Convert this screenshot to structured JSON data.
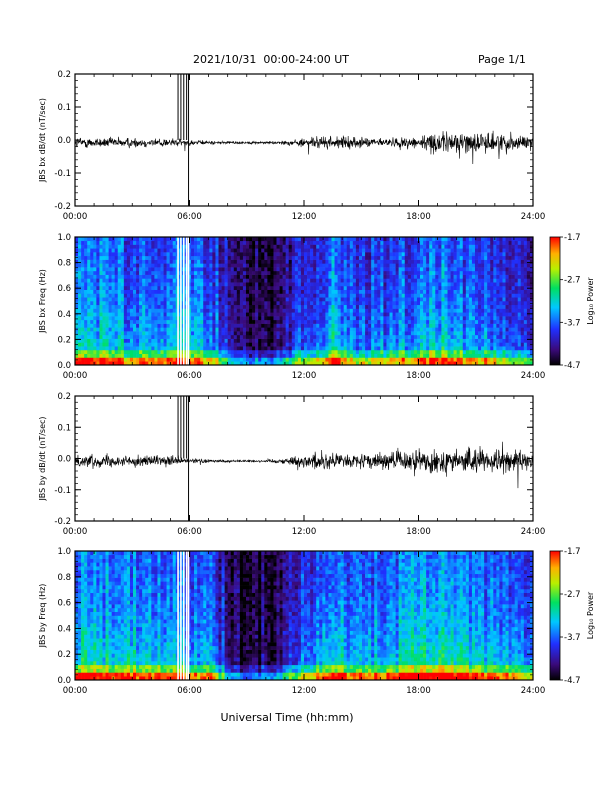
{
  "header": {
    "date_range": "2021/10/31  00:00-24:00 UT",
    "page": "Page 1/1"
  },
  "footer": {
    "xlabel": "Universal Time (hh:mm)"
  },
  "chart_data": [
    {
      "type": "line",
      "ylabel": "JBS bx dB/dt (nT/sec)",
      "xlabel": "",
      "x_range_hours": [
        0,
        24
      ],
      "x_ticks": [
        "00:00",
        "06:00",
        "12:00",
        "18:00",
        "24:00"
      ],
      "ylim": [
        -0.2,
        0.2
      ],
      "y_ticks": [
        "0.2",
        "0.1",
        "0.0",
        "-0.1",
        "-0.2"
      ],
      "y_tick_values": [
        0.2,
        0.1,
        0.0,
        -0.1,
        -0.2
      ],
      "series": [
        {
          "color": "#000000",
          "x_hours": [
            0,
            1,
            2,
            3,
            4,
            5,
            6,
            7,
            8,
            9,
            10,
            11,
            12,
            13,
            14,
            15,
            16,
            17,
            18,
            19,
            20,
            21,
            22,
            23,
            24
          ],
          "envelope_amplitude": [
            0.04,
            0.035,
            0.035,
            0.035,
            0.03,
            0.03,
            0.02,
            0.012,
            0.01,
            0.008,
            0.01,
            0.015,
            0.03,
            0.045,
            0.04,
            0.035,
            0.03,
            0.035,
            0.05,
            0.07,
            0.08,
            0.07,
            0.07,
            0.06,
            0.05
          ]
        }
      ],
      "spikes_hours": [
        5.4,
        5.55,
        5.7,
        5.85,
        5.95
      ]
    },
    {
      "type": "heatmap",
      "ylabel": "JBS bx Freq (Hz)",
      "xlabel": "",
      "x_range_hours": [
        0,
        24
      ],
      "x_ticks": [
        "00:00",
        "06:00",
        "12:00",
        "18:00",
        "24:00"
      ],
      "ylim": [
        0.0,
        1.0
      ],
      "y_ticks": [
        "1.0",
        "0.8",
        "0.6",
        "0.4",
        "0.2",
        "0.0"
      ],
      "y_tick_values": [
        1.0,
        0.8,
        0.6,
        0.4,
        0.2,
        0.0
      ],
      "colorbar": {
        "label": "Log₁₀ Power",
        "range": [
          -4.7,
          -1.7
        ],
        "ticks": [
          "-1.7",
          "-2.7",
          "-3.7",
          "-4.7"
        ],
        "tick_values": [
          -1.7,
          -2.7,
          -3.7,
          -4.7
        ]
      },
      "activity_by_hour": [
        0.55,
        0.55,
        0.5,
        0.5,
        0.5,
        0.55,
        0.5,
        0.45,
        0.1,
        0.1,
        0.12,
        0.3,
        0.35,
        0.6,
        0.35,
        0.4,
        0.45,
        0.5,
        0.6,
        0.55,
        0.45,
        0.45,
        0.35,
        0.3
      ],
      "gaps_hours": [
        5.4,
        5.55,
        5.7,
        5.85,
        5.95
      ]
    },
    {
      "type": "line",
      "ylabel": "JBS by dB/dt (nT/sec)",
      "xlabel": "",
      "x_range_hours": [
        0,
        24
      ],
      "x_ticks": [
        "00:00",
        "06:00",
        "12:00",
        "18:00",
        "24:00"
      ],
      "ylim": [
        -0.2,
        0.2
      ],
      "y_ticks": [
        "0.2",
        "0.1",
        "0.0",
        "-0.1",
        "-0.2"
      ],
      "y_tick_values": [
        0.2,
        0.1,
        0.0,
        -0.1,
        -0.2
      ],
      "series": [
        {
          "color": "#000000",
          "x_hours": [
            0,
            1,
            2,
            3,
            4,
            5,
            6,
            7,
            8,
            9,
            10,
            11,
            12,
            13,
            14,
            15,
            16,
            17,
            18,
            19,
            20,
            21,
            22,
            23,
            24
          ],
          "envelope_amplitude": [
            0.045,
            0.045,
            0.04,
            0.04,
            0.035,
            0.035,
            0.02,
            0.012,
            0.01,
            0.008,
            0.012,
            0.02,
            0.05,
            0.07,
            0.05,
            0.05,
            0.06,
            0.07,
            0.08,
            0.09,
            0.09,
            0.09,
            0.08,
            0.08,
            0.06
          ]
        }
      ],
      "spikes_hours": [
        5.4,
        5.55,
        5.7,
        5.85,
        5.95
      ]
    },
    {
      "type": "heatmap",
      "ylabel": "JBS by Freq (Hz)",
      "xlabel": "",
      "x_range_hours": [
        0,
        24
      ],
      "x_ticks": [
        "00:00",
        "06:00",
        "12:00",
        "18:00",
        "24:00"
      ],
      "ylim": [
        0.0,
        1.0
      ],
      "y_ticks": [
        "1.0",
        "0.8",
        "0.6",
        "0.4",
        "0.2",
        "0.0"
      ],
      "y_tick_values": [
        1.0,
        0.8,
        0.6,
        0.4,
        0.2,
        0.0
      ],
      "colorbar": {
        "label": "Log₁₀ Power",
        "range": [
          -4.7,
          -1.7
        ],
        "ticks": [
          "-1.7",
          "-2.7",
          "-3.7",
          "-4.7"
        ],
        "tick_values": [
          -1.7,
          -2.7,
          -3.7,
          -4.7
        ]
      },
      "activity_by_hour": [
        0.6,
        0.6,
        0.55,
        0.55,
        0.55,
        0.55,
        0.5,
        0.45,
        0.1,
        0.1,
        0.12,
        0.35,
        0.45,
        0.65,
        0.45,
        0.5,
        0.55,
        0.6,
        0.65,
        0.6,
        0.55,
        0.5,
        0.45,
        0.4
      ],
      "gaps_hours": [
        5.4,
        5.55,
        5.7,
        5.85,
        5.95
      ]
    }
  ]
}
